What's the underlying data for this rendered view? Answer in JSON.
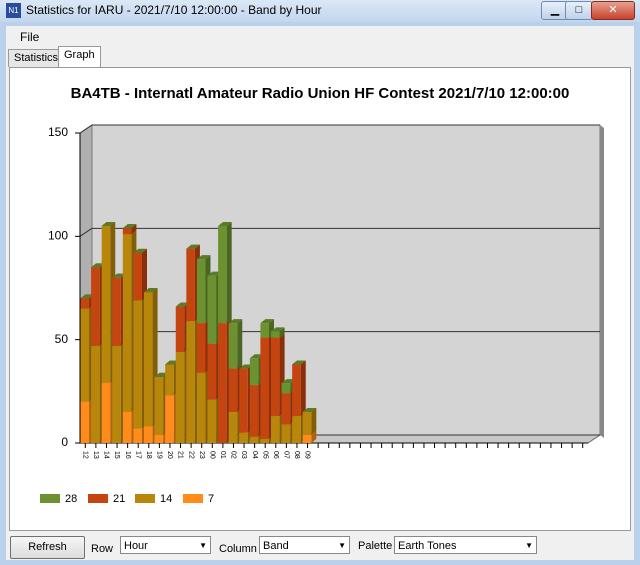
{
  "window": {
    "title": "Statistics for IARU - 2021/7/10 12:00:00 - Band by Hour",
    "menu": [
      "File"
    ],
    "tabs": [
      "Statistics",
      "Graph"
    ]
  },
  "chart_data": {
    "type": "bar",
    "stacked": true,
    "title": "BA4TB - Internatl Amateur Radio Union HF Contest 2021/7/10 12:00:00",
    "categories": [
      "12",
      "13",
      "14",
      "15",
      "16",
      "17",
      "18",
      "19",
      "20",
      "21",
      "22",
      "23",
      "00",
      "01",
      "02",
      "03",
      "04",
      "05",
      "06",
      "07",
      "08",
      "09",
      null,
      null,
      null,
      null,
      null,
      null,
      null,
      null,
      null,
      null,
      null,
      null,
      null,
      null,
      null,
      null,
      null,
      null,
      null,
      null,
      null,
      null,
      null,
      null,
      null,
      null
    ],
    "series": [
      {
        "name": "28",
        "color": "#6b9130",
        "values": [
          0,
          0,
          0,
          0,
          0,
          0,
          0,
          0,
          0,
          0,
          0,
          31,
          33,
          47,
          22,
          0,
          13,
          7,
          3,
          5,
          0,
          0,
          null,
          null,
          null,
          null,
          null,
          null,
          null,
          null,
          null,
          null,
          null,
          null,
          null,
          null,
          null,
          null,
          null,
          null,
          null,
          null,
          null,
          null,
          null,
          null,
          null,
          null
        ]
      },
      {
        "name": "21",
        "color": "#c4450f",
        "values": [
          5,
          38,
          0,
          33,
          3,
          23,
          0,
          0,
          0,
          22,
          35,
          24,
          27,
          58,
          21,
          31,
          25,
          49,
          38,
          15,
          25,
          0,
          null,
          null,
          null,
          null,
          null,
          null,
          null,
          null,
          null,
          null,
          null,
          null,
          null,
          null,
          null,
          null,
          null,
          null,
          null,
          null,
          null,
          null,
          null,
          null,
          null,
          null
        ]
      },
      {
        "name": "14",
        "color": "#b8860b",
        "values": [
          45,
          47,
          76,
          47,
          86,
          62,
          65,
          28,
          15,
          44,
          59,
          34,
          21,
          0,
          15,
          5,
          3,
          2,
          13,
          9,
          13,
          11,
          null,
          null,
          null,
          null,
          null,
          null,
          null,
          null,
          null,
          null,
          null,
          null,
          null,
          null,
          null,
          null,
          null,
          null,
          null,
          null,
          null,
          null,
          null,
          null,
          null,
          null
        ]
      },
      {
        "name": "7",
        "color": "#ff8c1a",
        "values": [
          20,
          0,
          29,
          0,
          15,
          7,
          8,
          4,
          23,
          0,
          0,
          0,
          0,
          0,
          0,
          0,
          0,
          0,
          0,
          0,
          0,
          4,
          null,
          null,
          null,
          null,
          null,
          null,
          null,
          null,
          null,
          null,
          null,
          null,
          null,
          null,
          null,
          null,
          null,
          null,
          null,
          null,
          null,
          null,
          null,
          null,
          null,
          null
        ]
      }
    ],
    "ylim": [
      0,
      150
    ],
    "yticks": [
      0,
      50,
      100,
      150
    ],
    "grid": true
  },
  "controls": {
    "refresh": "Refresh",
    "row_label": "Row",
    "row_value": "Hour",
    "column_label": "Column",
    "column_value": "Band",
    "palette_label": "Palette",
    "palette_value": "Earth Tones"
  }
}
